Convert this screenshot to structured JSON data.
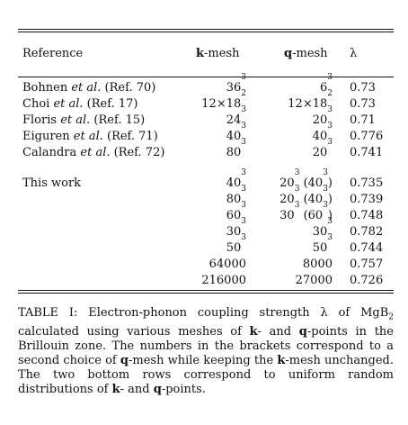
{
  "table": {
    "headers": {
      "reference": "Reference",
      "kmesh_bold": "k",
      "kmesh_rest": "-mesh",
      "qmesh_bold": "q",
      "qmesh_rest": "-mesh",
      "lambda": "λ"
    },
    "literature_rows": [
      {
        "name": "Bohnen",
        "etal": "et al.",
        "ref": "(Ref. 70)",
        "k": "36³",
        "q": "6³",
        "lambda": "0.73"
      },
      {
        "name": "Choi",
        "etal": "et al.",
        "ref": "(Ref. 17)",
        "k": "12×18²",
        "q": "12×18²",
        "lambda": "0.73"
      },
      {
        "name": "Floris",
        "etal": "et al.",
        "ref": "(Ref. 15)",
        "k": "24³",
        "q": "20³",
        "lambda": "0.71"
      },
      {
        "name": "Eiguren",
        "etal": "et al.",
        "ref": "(Ref. 71)",
        "k": "40³",
        "q": "40³",
        "lambda": "0.776"
      },
      {
        "name": "Calandra",
        "etal": "et al.",
        "ref": "(Ref. 72)",
        "k": "80³",
        "q": "20³",
        "lambda": "0.741"
      }
    ],
    "this_work_label": "This work",
    "this_work_rows": [
      {
        "k": "40³",
        "q": "20³ (40³)",
        "lambda": "0.735"
      },
      {
        "k": "80³",
        "q": "20³ (40³)",
        "lambda": "0.739"
      },
      {
        "k": "60³",
        "q": "30³ (60³)",
        "lambda": "0.748"
      },
      {
        "k": "30³",
        "q": "30³",
        "lambda": "0.782"
      },
      {
        "k": "50³",
        "q": "50³",
        "lambda": "0.744"
      },
      {
        "k": "64000",
        "q": "8000",
        "lambda": "0.757"
      },
      {
        "k": "216000",
        "q": "27000",
        "lambda": "0.726"
      }
    ]
  },
  "caption": {
    "label": "TABLE I:",
    "p1": "Electron-phonon coupling strength λ of MgB",
    "p1_sub": "2",
    "p2": " calculated using various meshes of ",
    "k": "k",
    "p3": "- and ",
    "q": "q",
    "p4": "-points in the Brillouin zone. The numbers in the brackets correspond to a second choice of ",
    "q2": "q",
    "p5": "-mesh while keeping the ",
    "k2": "k",
    "p6": "-mesh unchanged. The two bottom rows correspond to uniform random distributions of ",
    "k3": "k",
    "p7": "- and ",
    "q3": "q",
    "p8": "-points."
  }
}
